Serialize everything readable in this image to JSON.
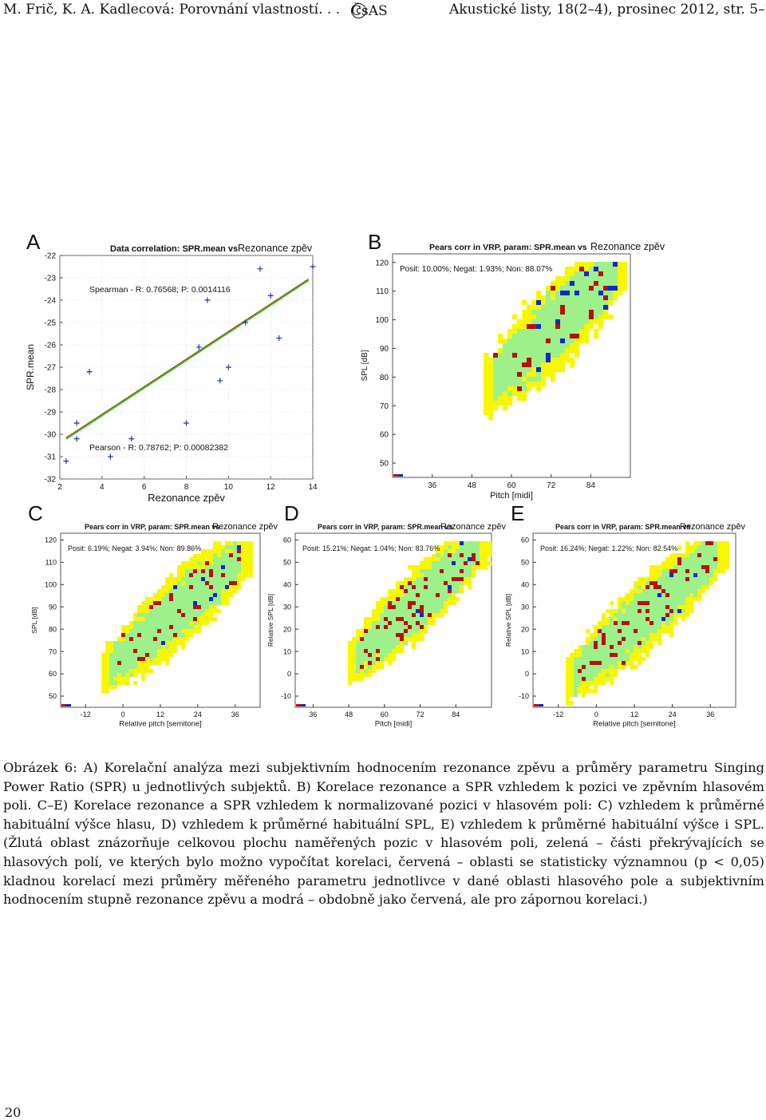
{
  "header": {
    "left": "M. Frič, K. A. Kadlecová: Porovnání vlastností. . .",
    "copyright_symbol": "c",
    "center": "ČsAS",
    "right": "Akustické listy, 18(2–4), prosinec 2012, str. 5–23"
  },
  "colors": {
    "yellow": "#f7f700",
    "green": "#9ef08a",
    "red": "#b81010",
    "blue": "#1028d0",
    "fit_green": "#22cc22",
    "fit_red": "#dd2222",
    "marker_blue": "#2233bb"
  },
  "figure": {
    "panel_letters": [
      "A",
      "B",
      "C",
      "D",
      "E"
    ]
  },
  "chart_data": [
    {
      "id": "A",
      "type": "scatter",
      "title": "Data correlation: SPR.mean vs",
      "title_suffix": "Rezonance zpěv",
      "xlabel": "Rezonance zpěv",
      "ylabel": "SPR.mean",
      "xlim": [
        2,
        14
      ],
      "ylim": [
        -32,
        -22
      ],
      "xticks": [
        "2",
        "4",
        "6",
        "8",
        "10",
        "12",
        "14"
      ],
      "yticks": [
        "-22",
        "-23",
        "-24",
        "-25",
        "-26",
        "-27",
        "-28",
        "-29",
        "-30",
        "-31",
        "-32"
      ],
      "points": [
        [
          2.3,
          -31.2
        ],
        [
          2.8,
          -29.5
        ],
        [
          2.8,
          -30.2
        ],
        [
          3.4,
          -27.2
        ],
        [
          4.4,
          -31.0
        ],
        [
          5.4,
          -30.2
        ],
        [
          8.0,
          -29.5
        ],
        [
          8.6,
          -26.1
        ],
        [
          9.0,
          -24.0
        ],
        [
          9.6,
          -27.6
        ],
        [
          10.0,
          -27.0
        ],
        [
          10.8,
          -25.0
        ],
        [
          11.5,
          -22.6
        ],
        [
          12.4,
          -25.7
        ],
        [
          12.0,
          -23.8
        ],
        [
          14.0,
          -22.5
        ]
      ],
      "fit_line": [
        [
          2.3,
          -30.2
        ],
        [
          13.8,
          -23.1
        ]
      ],
      "spearman": "Spearman - R: 0.76568; P: 0.0014116",
      "pearson": "Pearson - R: 0.78762; P: 0.00082382"
    },
    {
      "id": "B",
      "type": "heatmap",
      "title": "Pears corr in VRP, param: SPR.mean vs",
      "title_suffix": "Rezonance zpěv",
      "stats": "Posit: 10.00%; Negat: 1.93%; Non: 88.07%",
      "xlabel": "Pitch [midi]",
      "ylabel": "SPL [dB]",
      "xlim": [
        24,
        96
      ],
      "ylim": [
        45,
        123
      ],
      "xticks": [
        "36",
        "48",
        "60",
        "72",
        "84"
      ],
      "yticks": [
        "50",
        "60",
        "70",
        "80",
        "90",
        "100",
        "110",
        "120"
      ],
      "legend": "none"
    },
    {
      "id": "C",
      "type": "heatmap",
      "title": "Pears corr in VRP, param: SPR.mean vs",
      "title_suffix": "Rezonance zpěv",
      "stats": "Posit: 6.19%; Negat: 3.94%; Non: 89.86%",
      "xlabel": "Relative pitch [semitone]",
      "ylabel": "SPL [dB]",
      "xlim": [
        -20,
        44
      ],
      "ylim": [
        45,
        123
      ],
      "xticks": [
        "-12",
        "0",
        "12",
        "24",
        "36"
      ],
      "yticks": [
        "50",
        "60",
        "70",
        "80",
        "90",
        "100",
        "110",
        "120"
      ]
    },
    {
      "id": "D",
      "type": "heatmap",
      "title": "Pears corr in VRP, param: SPR.mean vs",
      "title_suffix": "Rezonance zpěv",
      "stats": "Posit: 15.21%; Negat: 1.04%; Non: 83.76%",
      "xlabel": "Pitch [midi]",
      "ylabel": "Relative SPL [dB]",
      "xlim": [
        30,
        96
      ],
      "ylim": [
        -15,
        63
      ],
      "xticks": [
        "36",
        "48",
        "60",
        "72",
        "84"
      ],
      "yticks": [
        "-10",
        "0",
        "10",
        "20",
        "30",
        "40",
        "50",
        "60"
      ]
    },
    {
      "id": "E",
      "type": "heatmap",
      "title": "Pears corr in VRP, param: SPR.mean vs",
      "title_suffix": "Rezonance zpěv",
      "stats": "Posit: 16.24%; Negat: 1.22%; Non: 82.54%",
      "xlabel": "Relative pitch [semitone]",
      "ylabel": "Relative SPL [dB]",
      "xlim": [
        -20,
        44
      ],
      "ylim": [
        -15,
        63
      ],
      "xticks": [
        "-12",
        "0",
        "12",
        "24",
        "36"
      ],
      "yticks": [
        "-10",
        "0",
        "10",
        "20",
        "30",
        "40",
        "50",
        "60"
      ]
    }
  ],
  "caption": {
    "text": "Obrázek 6: A) Korelační analýza mezi subjektivním hodnocením rezonance zpěvu a průměry parametru Singing Power Ratio (SPR) u jednotlivých subjektů. B) Korelace rezonance a SPR vzhledem k pozici ve zpěvním hlasovém poli. C–E) Korelace rezonance a SPR vzhledem k normalizované pozici v hlasovém poli: C) vzhledem k průměrné habituální výšce hlasu, D) vzhledem k průměrné habituální SPL, E) vzhledem k průměrné habituální výšce i SPL. (Žlutá oblast znázorňuje celkovou plochu naměřených pozic v hlasovém poli, zelená – části překrývajících se hlasových polí, ve kterých bylo možno vypočítat korelaci, červená – oblasti se statisticky významnou (p < 0,05) kladnou korelací mezi průměry měřeného parametru jednotlivce v dané oblasti hlasového pole a subjektivním hodnocením stupně rezonance zpěvu a modrá – obdobně jako červená, ale pro zápornou korelaci.)"
  },
  "page_number": "20"
}
